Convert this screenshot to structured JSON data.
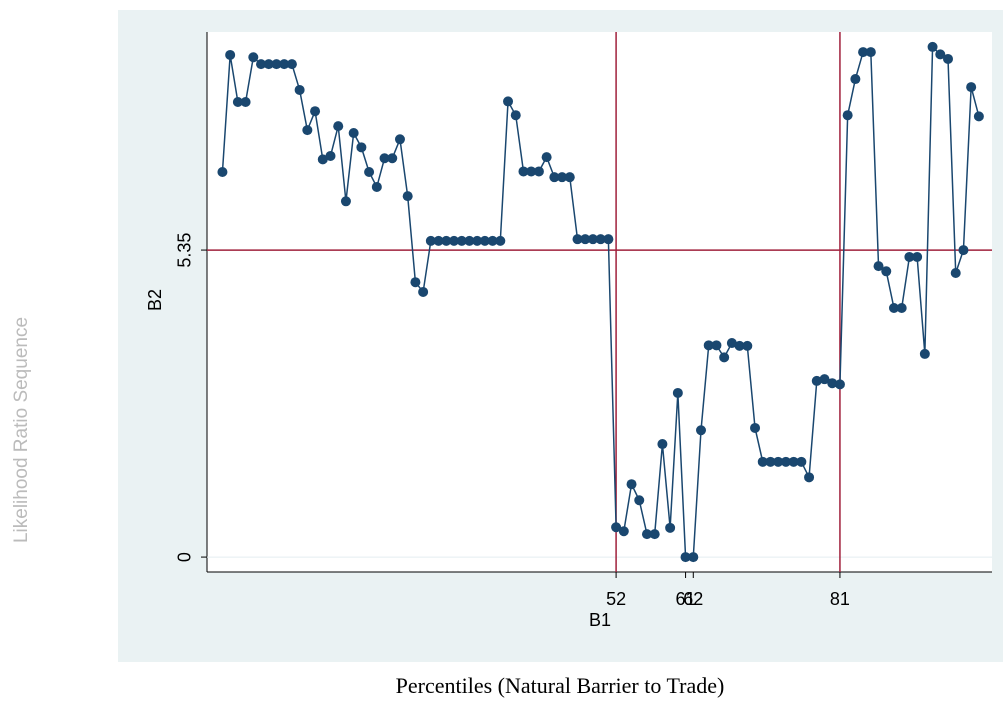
{
  "chart_data": {
    "type": "line",
    "x_title": "Percentiles (Natural Barrier to Trade)",
    "y_title": "Likelihood Ratio Sequence",
    "xlabel": "B1",
    "ylabel": "B2",
    "x": [
      1,
      2,
      3,
      4,
      5,
      6,
      7,
      8,
      9,
      10,
      11,
      12,
      13,
      14,
      15,
      16,
      17,
      18,
      19,
      20,
      21,
      22,
      23,
      24,
      25,
      26,
      27,
      28,
      29,
      30,
      31,
      32,
      33,
      34,
      35,
      36,
      37,
      38,
      39,
      40,
      41,
      42,
      43,
      44,
      45,
      46,
      47,
      48,
      49,
      50,
      51,
      52,
      53,
      54,
      55,
      56,
      57,
      58,
      59,
      60,
      61,
      62,
      63,
      64,
      65,
      66,
      67,
      68,
      69,
      70,
      71,
      72,
      73,
      74,
      75,
      76,
      77,
      78,
      79,
      80,
      81,
      82,
      83,
      84,
      85,
      86,
      87,
      88,
      89,
      90,
      91,
      92,
      93,
      94,
      95,
      96,
      97,
      98,
      99
    ],
    "series": [
      {
        "color": "#1a476f",
        "values": [
          6.71,
          8.75,
          7.93,
          7.93,
          8.71,
          8.59,
          8.59,
          8.59,
          8.59,
          8.59,
          8.14,
          7.44,
          7.77,
          6.93,
          6.99,
          7.51,
          6.2,
          7.39,
          7.14,
          6.71,
          6.45,
          6.95,
          6.95,
          7.28,
          6.29,
          4.79,
          4.62,
          5.51,
          5.51,
          5.51,
          5.51,
          5.51,
          5.51,
          5.51,
          5.51,
          5.51,
          5.51,
          7.94,
          7.7,
          6.72,
          6.72,
          6.72,
          6.97,
          6.62,
          6.62,
          6.62,
          5.54,
          5.54,
          5.54,
          5.54,
          5.54,
          0.52,
          0.45,
          1.27,
          0.99,
          0.4,
          0.4,
          1.97,
          0.51,
          2.86,
          0,
          0,
          2.21,
          3.69,
          3.69,
          3.48,
          3.73,
          3.68,
          3.68,
          2.25,
          1.66,
          1.66,
          1.66,
          1.66,
          1.66,
          1.66,
          1.39,
          3.07,
          3.1,
          3.03,
          3.01,
          7.7,
          8.33,
          8.8,
          8.8,
          5.07,
          4.98,
          4.34,
          4.34,
          5.23,
          5.23,
          3.54,
          8.89,
          8.76,
          8.68,
          4.95,
          5.35,
          8.19,
          7.68
        ]
      }
    ],
    "xlim": [
      -1,
      100.7
    ],
    "ylim": [
      -0.26,
      9.15
    ],
    "xticks": [
      52,
      61,
      62,
      81
    ],
    "yticks": [
      0,
      5.35
    ],
    "reference_lines": {
      "x": [
        52,
        81
      ],
      "y": [
        5.35
      ],
      "color": "#a0203c"
    },
    "grid": true
  }
}
